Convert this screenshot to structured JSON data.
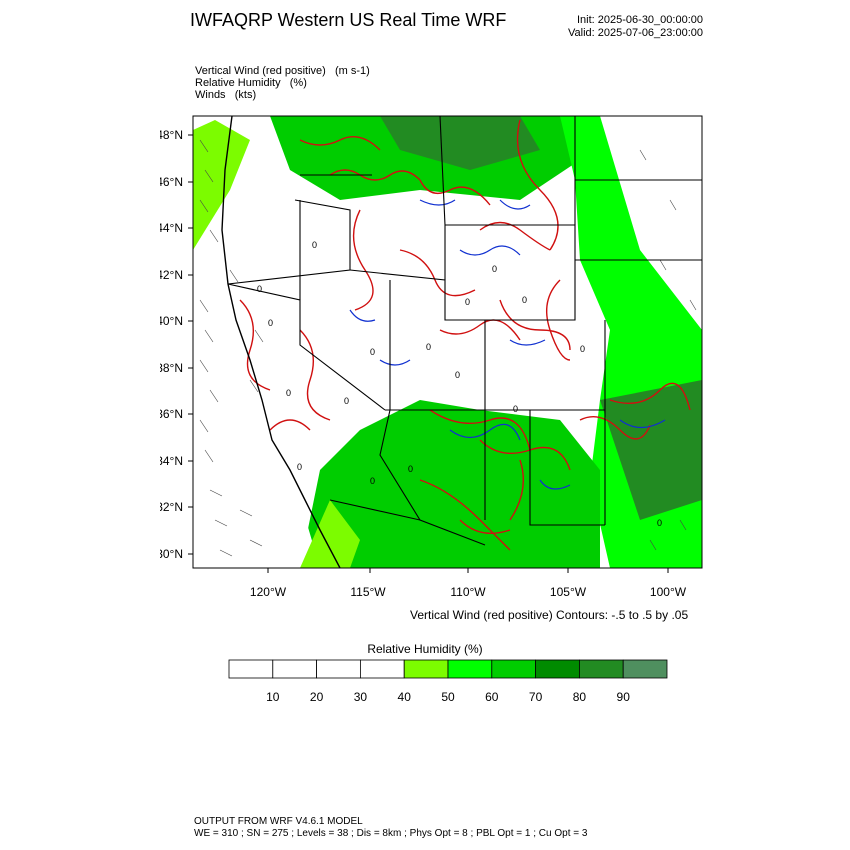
{
  "header": {
    "title": "IWFAQRP Western US Real Time WRF",
    "init": "Init: 2025-06-30_00:00:00",
    "valid": "Valid: 2025-07-06_23:00:00"
  },
  "fields": [
    "Vertical Wind (red positive)   (m s-1)",
    "Relative Humidity   (%)",
    "Winds   (kts)"
  ],
  "map": {
    "lat_labels": [
      "48°N",
      "46°N",
      "44°N",
      "42°N",
      "40°N",
      "38°N",
      "36°N",
      "34°N",
      "32°N",
      "30°N"
    ],
    "lon_labels": [
      "120°W",
      "115°W",
      "110°W",
      "105°W",
      "100°W"
    ],
    "contour_label": "0",
    "colors": {
      "positive_vertical": "#d01010",
      "negative_vertical": "#1030d0",
      "rh_40": "#7cfc00",
      "rh_50": "#00ff00",
      "rh_60": "#00cd00",
      "rh_70": "#008b00",
      "rh_80": "#228b22",
      "rh_90": "#4f8f5f"
    }
  },
  "contours_note": "Vertical Wind (red positive) Contours: -.5 to .5 by .05",
  "colorbar": {
    "title": "Relative Humidity  (%)",
    "labels": [
      "10",
      "20",
      "30",
      "40",
      "50",
      "60",
      "70",
      "80",
      "90"
    ],
    "colors": [
      "#ffffff",
      "#ffffff",
      "#ffffff",
      "#ffffff",
      "#7cfc00",
      "#00ff00",
      "#00cd00",
      "#008b00",
      "#228b22",
      "#4f8f5f"
    ]
  },
  "footer": {
    "line1": "OUTPUT FROM WRF V4.6.1 MODEL",
    "line2": "WE = 310 ; SN = 275 ; Levels = 38 ; Dis = 8km ; Phys Opt = 8 ; PBL Opt = 1 ; Cu Opt = 3"
  }
}
